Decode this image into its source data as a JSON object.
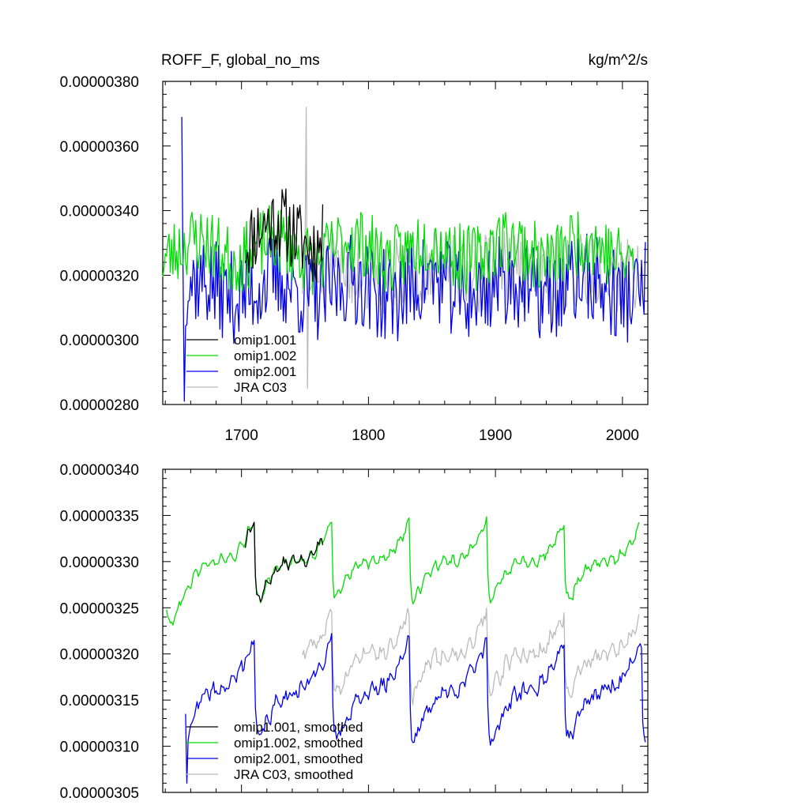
{
  "chart_data": [
    {
      "type": "line",
      "title": "ROFF_F, global_no_ms",
      "units": "kg/m^2/s",
      "xlim": [
        1638,
        2020
      ],
      "ylim": [
        2.8e-06,
        3.8e-06
      ],
      "x_ticks": [
        1700,
        1800,
        1900,
        2000
      ],
      "x_tick_labels": [
        "1700",
        "1800",
        "1900",
        "2000"
      ],
      "y_ticks": [
        2.8e-06,
        3e-06,
        3.2e-06,
        3.4e-06,
        3.6e-06,
        3.8e-06
      ],
      "y_tick_labels": [
        "0.00000280",
        "0.00000300",
        "0.00000320",
        "0.00000340",
        "0.00000360",
        "0.00000380"
      ],
      "legend": {
        "position": "bottom-left"
      },
      "series": [
        {
          "name": "omip1.001",
          "color": "#000000",
          "x_start": 1703,
          "x_end": 1764,
          "mean": 3.33e-06,
          "amp": 1e-07,
          "noise": 1e-07,
          "seed": 11
        },
        {
          "name": "omip1.002",
          "color": "#00dd00",
          "x_start": 1638,
          "x_end": 2009,
          "mean": 3.28e-06,
          "amp": 8e-08,
          "noise": 9e-08,
          "seed": 23
        },
        {
          "name": "omip2.001",
          "color": "#0000ee",
          "x_start": 1653,
          "x_end": 2018,
          "mean": 3.16e-06,
          "amp": 7e-08,
          "noise": 1.2e-07,
          "seed": 37,
          "spikes": [
            [
              1653,
              3.69e-06
            ],
            [
              1655,
              2.81e-06
            ]
          ]
        },
        {
          "name": "JRA C03",
          "color": "#bbbbbb",
          "x_start": 1748,
          "x_end": 2013,
          "mean": 3.21e-06,
          "amp": 4e-08,
          "noise": 1e-07,
          "seed": 51,
          "spikes": [
            [
              1751,
              3.72e-06
            ],
            [
              1752,
              2.85e-06
            ]
          ]
        }
      ]
    },
    {
      "type": "line",
      "title": "",
      "xlim": [
        1638,
        2020
      ],
      "ylim": [
        3.05e-06,
        3.4e-06
      ],
      "x_ticks": [
        1700,
        1800,
        1900,
        2000
      ],
      "x_tick_labels": [],
      "y_ticks": [
        3.05e-06,
        3.1e-06,
        3.15e-06,
        3.2e-06,
        3.25e-06,
        3.3e-06,
        3.35e-06,
        3.4e-06
      ],
      "y_tick_labels": [
        "0.00000305",
        "0.00000310",
        "0.00000315",
        "0.00000320",
        "0.00000325",
        "0.00000330",
        "0.00000335",
        "0.00000340"
      ],
      "legend": {
        "position": "bottom-left"
      },
      "series": [
        {
          "name": "omip1.001, smoothed",
          "color": "#000000",
          "x_start": 1703,
          "x_end": 1764,
          "mean": 3.3e-06,
          "amp": 4e-07,
          "noise": 1e-08,
          "seed": 13
        },
        {
          "name": "omip1.002, smoothed",
          "color": "#00dd00",
          "x_start": 1641,
          "x_end": 2013,
          "mean": 3.3e-06,
          "amp": 4e-07,
          "noise": 1e-08,
          "seed": 29
        },
        {
          "name": "omip2.001, smoothed",
          "color": "#0000ee",
          "x_start": 1656,
          "x_end": 2018,
          "mean": 3.16e-06,
          "amp": 5e-07,
          "noise": 2e-08,
          "seed": 41,
          "spikes": [
            [
              1657,
              3.06e-06
            ]
          ]
        },
        {
          "name": "JRA C03, smoothed",
          "color": "#bbbbbb",
          "x_start": 1748,
          "x_end": 2013,
          "mean": 3.2e-06,
          "amp": 4e-07,
          "noise": 2e-08,
          "seed": 59
        }
      ]
    }
  ]
}
